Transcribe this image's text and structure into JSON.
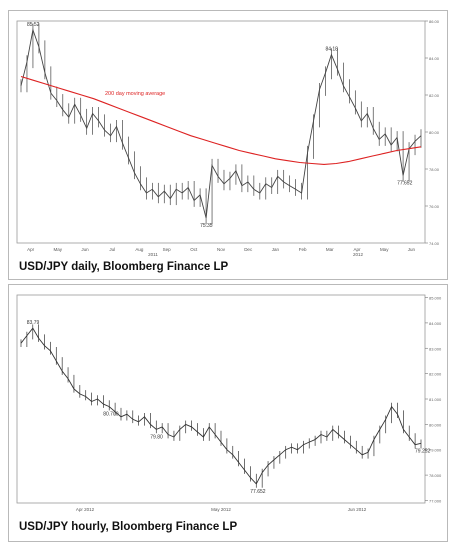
{
  "charts": {
    "daily": {
      "caption": "USD/JPY daily, Bloomberg Finance LP",
      "ma_label": "200 day moving average",
      "x_labels": [
        "Apr",
        "May",
        "Jun",
        "Jul",
        "Aug",
        "Sep",
        "Oct",
        "Nov",
        "Dec",
        "Jan",
        "Feb",
        "Mar",
        "Apr",
        "May",
        "Jun"
      ],
      "year_labels": [
        "2011",
        "2012"
      ]
    },
    "hourly": {
      "caption": "USD/JPY hourly, Bloomberg Finance LP",
      "x_labels": [
        "Apr 2012",
        "May 2012",
        "Jun 2012"
      ]
    }
  },
  "chart_data": [
    {
      "type": "line",
      "title": "USD/JPY daily, Bloomberg Finance LP",
      "ylim": [
        74,
        86
      ],
      "annotations": [
        {
          "label": "85.52",
          "value": 85.52
        },
        {
          "label": "84.18",
          "value": 84.18
        },
        {
          "label": "75.35",
          "value": 75.35
        },
        {
          "label": "77.652",
          "value": 77.652
        }
      ],
      "series": [
        {
          "name": "USD/JPY",
          "color": "#444444",
          "values": [
            82.5,
            83.8,
            85.52,
            84.6,
            83.2,
            82.1,
            81.7,
            81.2,
            80.8,
            81.5,
            80.9,
            80.2,
            81.0,
            80.6,
            80.1,
            79.8,
            80.3,
            79.4,
            78.6,
            77.8,
            77.2,
            76.7,
            76.9,
            76.5,
            76.8,
            76.4,
            76.9,
            76.7,
            77.0,
            76.3,
            76.6,
            75.35,
            78.2,
            77.6,
            77.2,
            77.5,
            77.9,
            77.1,
            77.3,
            76.9,
            76.7,
            77.2,
            77.0,
            77.6,
            77.3,
            77.1,
            76.9,
            76.7,
            78.9,
            80.6,
            82.3,
            83.2,
            84.18,
            83.4,
            82.5,
            81.9,
            81.3,
            80.6,
            81.0,
            80.2,
            79.6,
            79.9,
            79.3,
            79.7,
            77.652,
            79.1,
            79.5,
            79.8
          ]
        },
        {
          "name": "200 day moving average",
          "color": "#dd2222",
          "values": [
            83.0,
            82.8,
            82.6,
            82.4,
            82.2,
            82.0,
            81.8,
            81.55,
            81.3,
            81.05,
            80.8,
            80.55,
            80.3,
            80.05,
            79.8,
            79.6,
            79.4,
            79.2,
            79.0,
            78.85,
            78.7,
            78.55,
            78.45,
            78.35,
            78.3,
            78.25,
            78.3,
            78.4,
            78.55,
            78.7,
            78.85,
            79.0,
            79.1,
            79.2
          ]
        }
      ]
    },
    {
      "type": "line",
      "title": "USD/JPY hourly, Bloomberg Finance LP",
      "ylim": [
        76.9,
        85.1
      ],
      "annotations": [
        {
          "label": "83.79",
          "value": 83.79
        },
        {
          "label": "79.80",
          "value": 79.8
        },
        {
          "label": "77.652",
          "value": 77.652
        },
        {
          "label": "80.700",
          "value": 80.7
        },
        {
          "label": "79.252",
          "value": 79.252
        }
      ],
      "series": [
        {
          "name": "USD/JPY",
          "color": "#333333",
          "values": [
            83.2,
            83.5,
            83.79,
            83.4,
            83.1,
            82.9,
            82.5,
            82.1,
            81.8,
            81.4,
            81.2,
            81.1,
            80.9,
            81.0,
            80.8,
            80.7,
            80.5,
            80.3,
            80.4,
            80.2,
            80.1,
            80.3,
            80.0,
            79.8,
            79.9,
            79.6,
            79.5,
            79.8,
            80.0,
            79.9,
            79.7,
            79.5,
            79.9,
            79.6,
            79.3,
            79.0,
            78.8,
            78.5,
            78.2,
            77.9,
            77.652,
            78.1,
            78.4,
            78.6,
            78.8,
            79.0,
            79.1,
            79.0,
            79.2,
            79.3,
            79.4,
            79.6,
            79.5,
            79.8,
            79.6,
            79.4,
            79.2,
            79.0,
            78.8,
            78.9,
            79.4,
            79.8,
            80.2,
            80.7,
            80.4,
            79.8,
            79.5,
            79.2,
            79.252
          ]
        }
      ]
    }
  ]
}
